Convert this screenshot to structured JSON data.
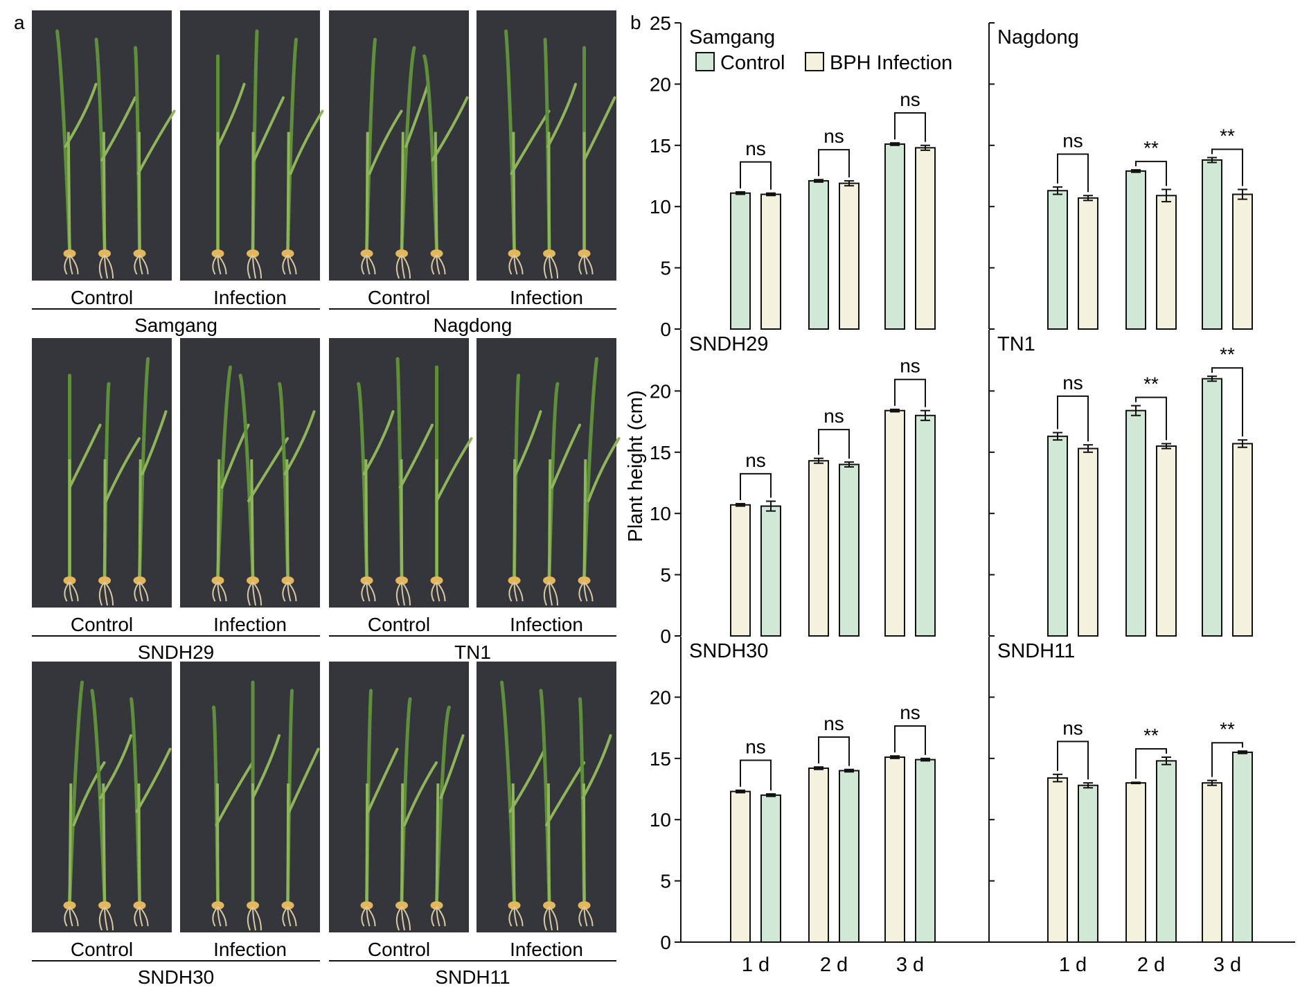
{
  "figure": {
    "panel_a_label": "a",
    "panel_b_label": "b",
    "photo_labels": {
      "control": "Control",
      "infection": "Infection"
    },
    "varieties_photo_order": [
      "Samgang",
      "Nagdong",
      "SNDH29",
      "TN1",
      "SNDH30",
      "SNDH11"
    ]
  },
  "colors": {
    "control": "#d1e8d7",
    "infection": "#f4f1de",
    "photo_bg": "#34363c",
    "plant_green": "#5f8f3a",
    "plant_light": "#8fb55a",
    "root": "#d9c9a3",
    "seed": "#e3b75a"
  },
  "chart_data": {
    "type": "bar",
    "ylabel": "Plant height (cm)",
    "ylim": [
      0,
      25
    ],
    "yticks": [
      0,
      5,
      10,
      15,
      20,
      25
    ],
    "categories": [
      "1 d",
      "2 d",
      "3 d"
    ],
    "legend": [
      "Control",
      "BPH Infection"
    ],
    "legend_position": "top-left",
    "panels": [
      {
        "name": "Samgang",
        "series_order": [
          "control",
          "infection"
        ],
        "control": [
          11.1,
          12.1,
          15.1
        ],
        "control_err": [
          0.1,
          0.1,
          0.1
        ],
        "infection": [
          11.0,
          11.9,
          14.8
        ],
        "infection_err": [
          0.1,
          0.2,
          0.2
        ],
        "sig": [
          "ns",
          "ns",
          "ns"
        ]
      },
      {
        "name": "Nagdong",
        "series_order": [
          "control",
          "infection"
        ],
        "control": [
          11.3,
          12.9,
          13.8
        ],
        "control_err": [
          0.3,
          0.1,
          0.2
        ],
        "infection": [
          10.7,
          10.9,
          11.0
        ],
        "infection_err": [
          0.2,
          0.5,
          0.4
        ],
        "sig": [
          "ns",
          "**",
          "**"
        ]
      },
      {
        "name": "SNDH29",
        "series_order": [
          "infection",
          "control"
        ],
        "control": [
          10.6,
          14.0,
          18.0
        ],
        "control_err": [
          0.4,
          0.2,
          0.4
        ],
        "infection": [
          10.7,
          14.3,
          18.4
        ],
        "infection_err": [
          0.1,
          0.2,
          0.1
        ],
        "sig": [
          "ns",
          "ns",
          "ns"
        ]
      },
      {
        "name": "TN1",
        "series_order": [
          "control",
          "infection"
        ],
        "control": [
          16.3,
          18.4,
          21.0
        ],
        "control_err": [
          0.3,
          0.4,
          0.2
        ],
        "infection": [
          15.3,
          15.5,
          15.7
        ],
        "infection_err": [
          0.3,
          0.2,
          0.3
        ],
        "sig": [
          "ns",
          "**",
          "**"
        ]
      },
      {
        "name": "SNDH30",
        "series_order": [
          "infection",
          "control"
        ],
        "control": [
          12.0,
          14.0,
          14.9
        ],
        "control_err": [
          0.1,
          0.1,
          0.1
        ],
        "infection": [
          12.3,
          14.2,
          15.1
        ],
        "infection_err": [
          0.1,
          0.1,
          0.1
        ],
        "sig": [
          "ns",
          "ns",
          "ns"
        ]
      },
      {
        "name": "SNDH11",
        "series_order": [
          "infection",
          "control"
        ],
        "control": [
          12.8,
          14.8,
          15.5
        ],
        "control_err": [
          0.2,
          0.3,
          0.1
        ],
        "infection": [
          13.4,
          13.0,
          13.0
        ],
        "infection_err": [
          0.3,
          0.05,
          0.2
        ],
        "sig": [
          "ns",
          "**",
          "**"
        ]
      }
    ]
  }
}
